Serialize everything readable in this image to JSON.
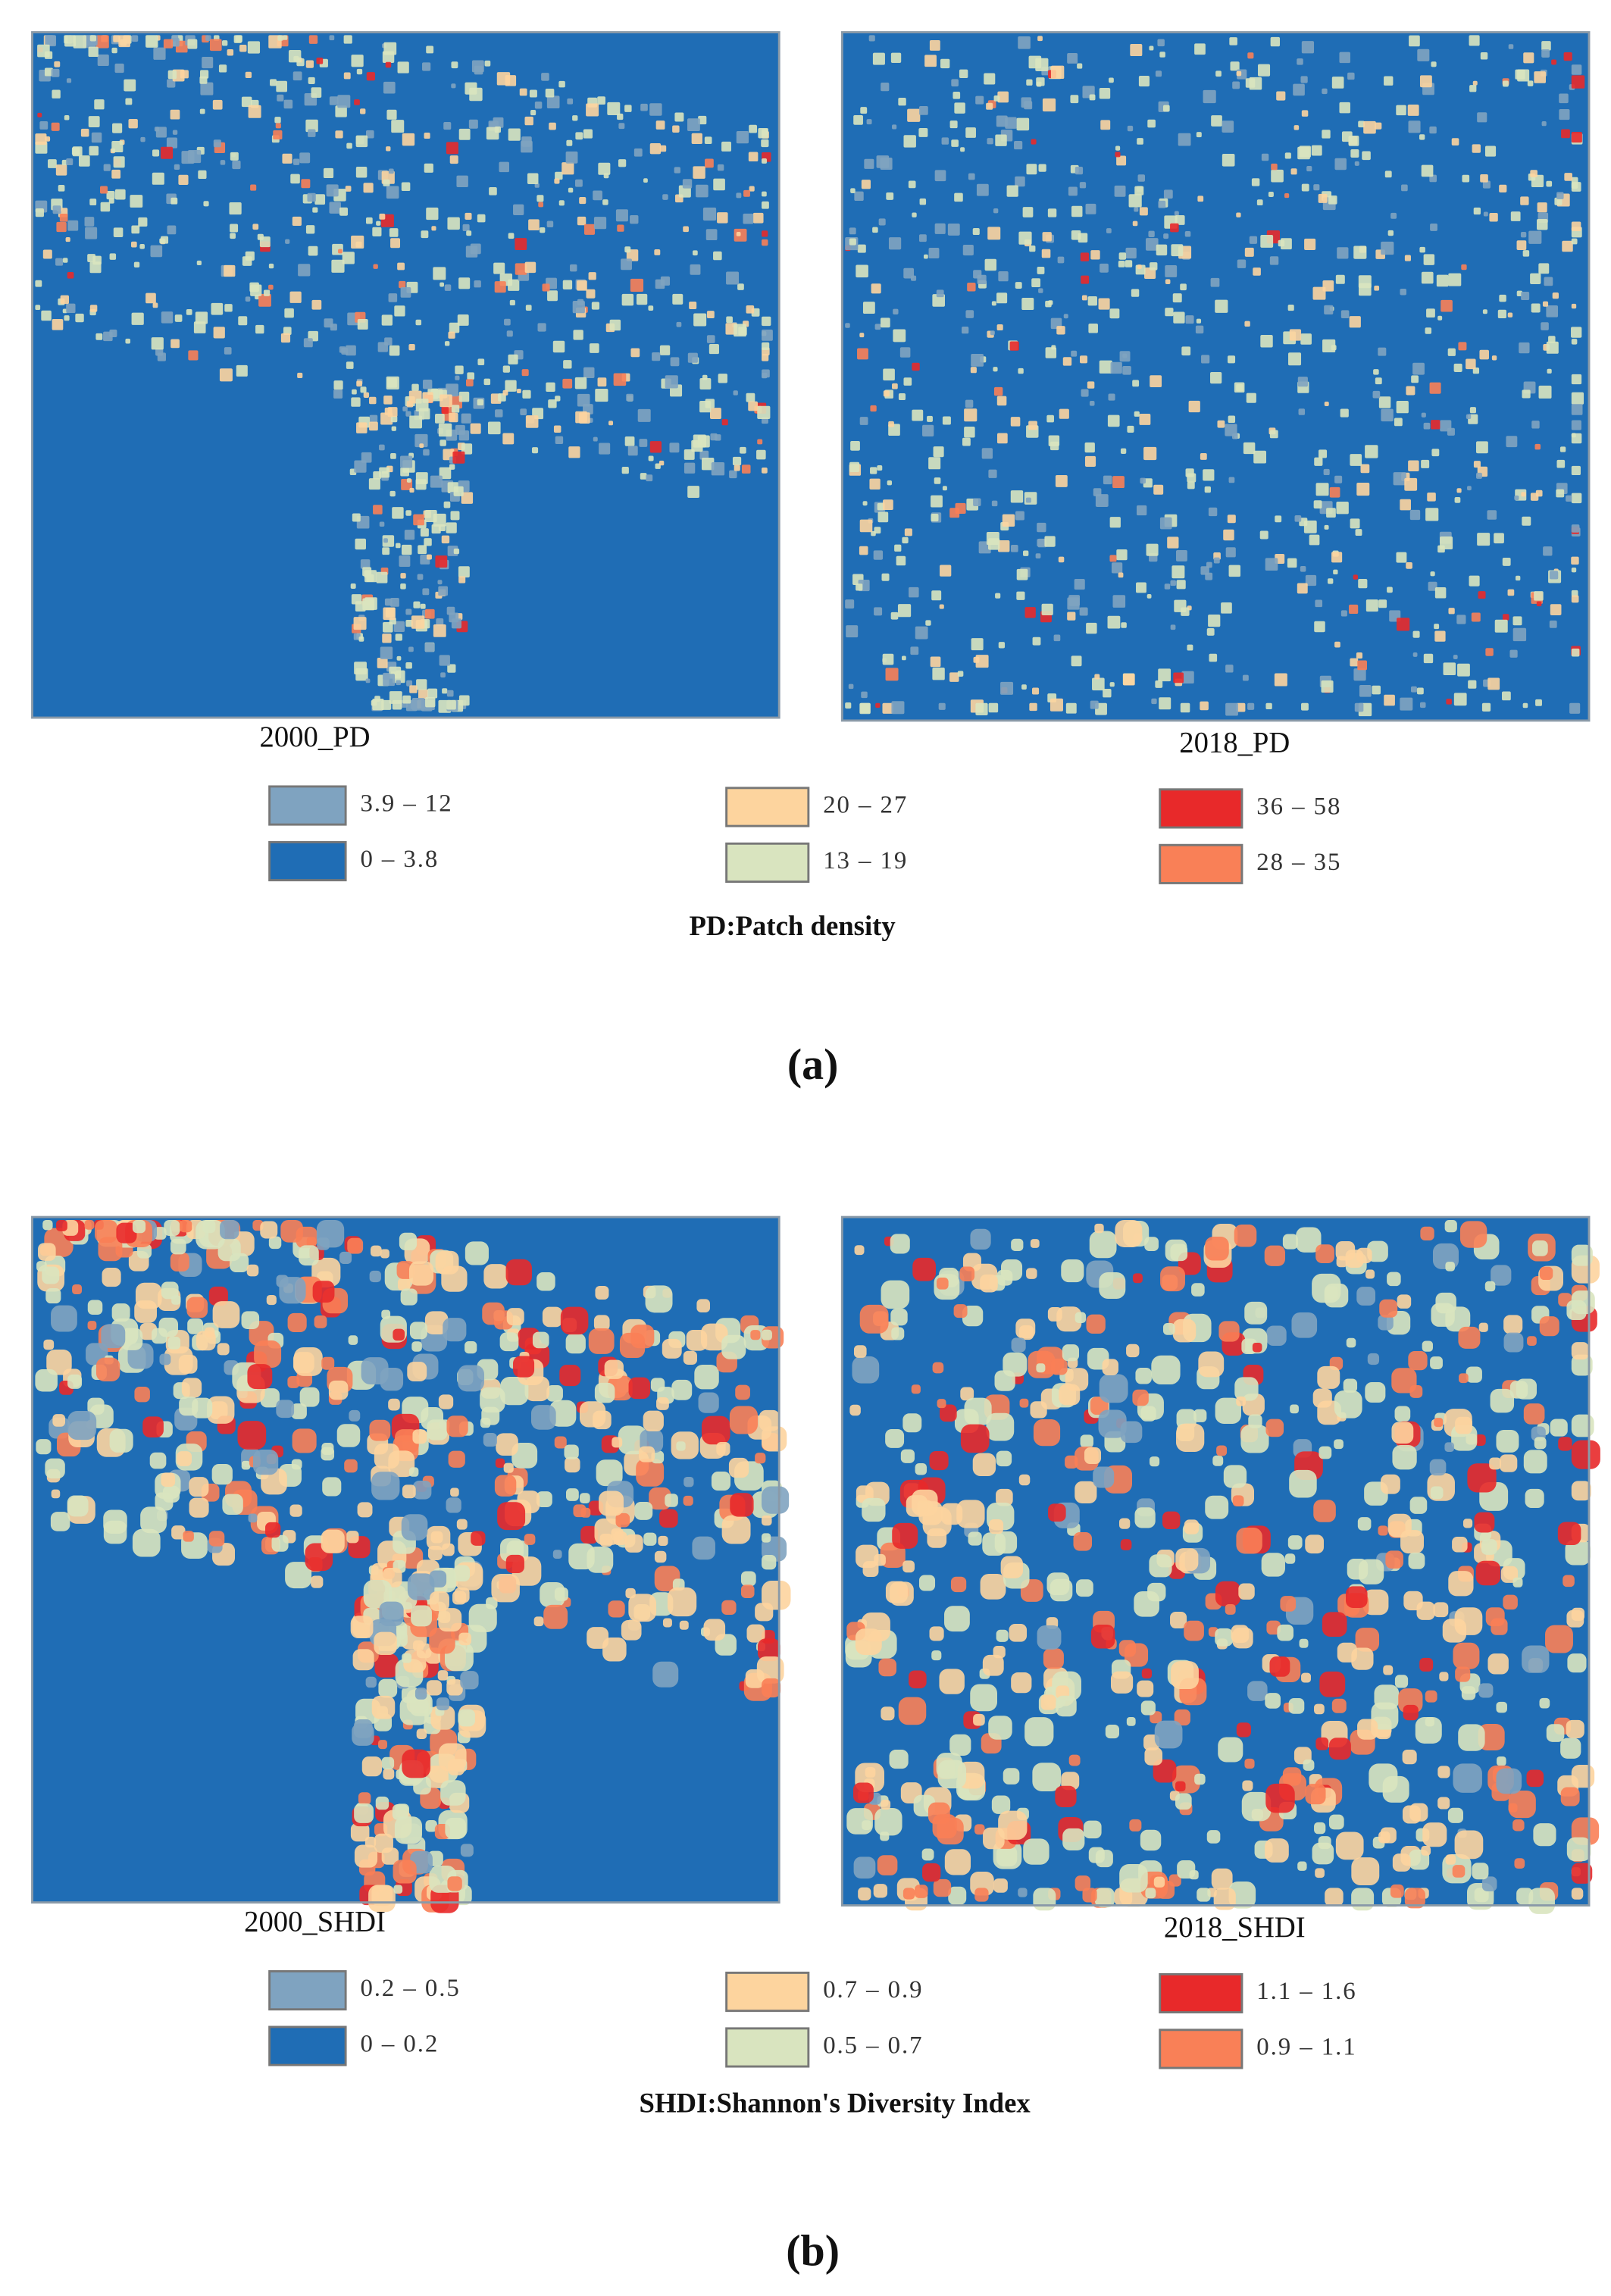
{
  "panels": [
    {
      "maps": [
        {
          "label": "2000_PD"
        },
        {
          "label": "2018_PD"
        }
      ],
      "legend": [
        {
          "label": "3.9 – 12",
          "color": "#7fa3c0"
        },
        {
          "label": "0 – 3.8",
          "color": "#1f6db5"
        },
        {
          "label": "20 – 27",
          "color": "#fdd49e"
        },
        {
          "label": "13 – 19",
          "color": "#d9e4bf"
        },
        {
          "label": "36 – 58",
          "color": "#e8292a"
        },
        {
          "label": "28 – 35",
          "color": "#f98057"
        }
      ],
      "caption": "PD:Patch density",
      "panel_label": "(a)"
    },
    {
      "maps": [
        {
          "label": "2000_SHDI"
        },
        {
          "label": "2018_SHDI"
        }
      ],
      "legend": [
        {
          "label": "0.2 – 0.5",
          "color": "#7fa3c0"
        },
        {
          "label": "0 – 0.2",
          "color": "#1f6db5"
        },
        {
          "label": "0.7 – 0.9",
          "color": "#fdd49e"
        },
        {
          "label": "0.5 – 0.7",
          "color": "#d9e4bf"
        },
        {
          "label": "1.1 – 1.6",
          "color": "#e8292a"
        },
        {
          "label": "0.9 – 1.1",
          "color": "#f98057"
        }
      ],
      "caption": "SHDI:Shannon's Diversity Index",
      "panel_label": "(b)"
    }
  ]
}
